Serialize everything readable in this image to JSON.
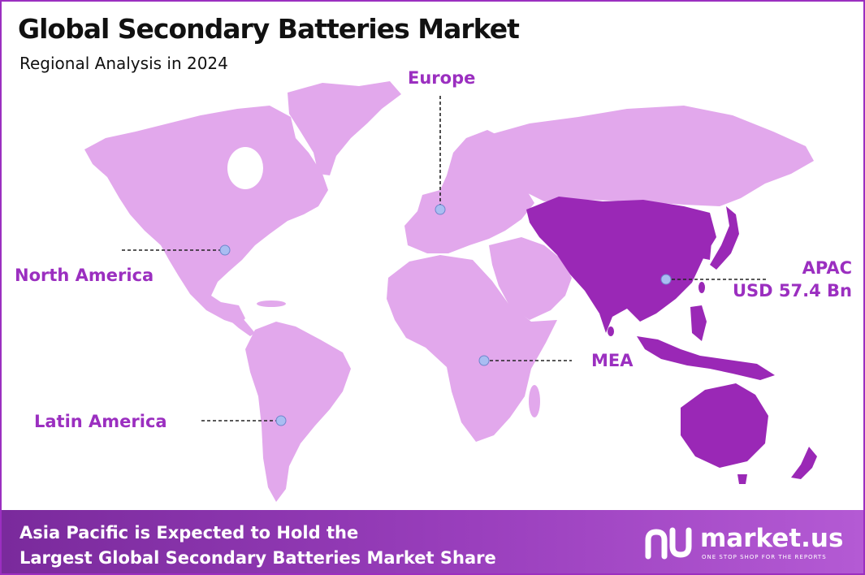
{
  "header": {
    "title": "Global Secondary Batteries Market",
    "subtitle": "Regional Analysis in 2024"
  },
  "regions": {
    "europe": {
      "label": "Europe"
    },
    "north_america": {
      "label": "North America"
    },
    "latin_america": {
      "label": "Latin America"
    },
    "mea": {
      "label": "MEA"
    },
    "apac": {
      "label": "APAC",
      "value": "USD 57.4 Bn",
      "highlighted": true
    }
  },
  "footer": {
    "line1": "Asia Pacific is Expected to Hold the",
    "line2": "Largest Global Secondary Batteries Market Share"
  },
  "brand": {
    "name": "market.us",
    "tagline": "ONE STOP SHOP FOR THE REPORTS"
  },
  "colors": {
    "accent": "#9b2fc0",
    "map_default": "#e2a8ec",
    "map_highlight": "#9a28b6",
    "marker": "#a9bdf2"
  }
}
